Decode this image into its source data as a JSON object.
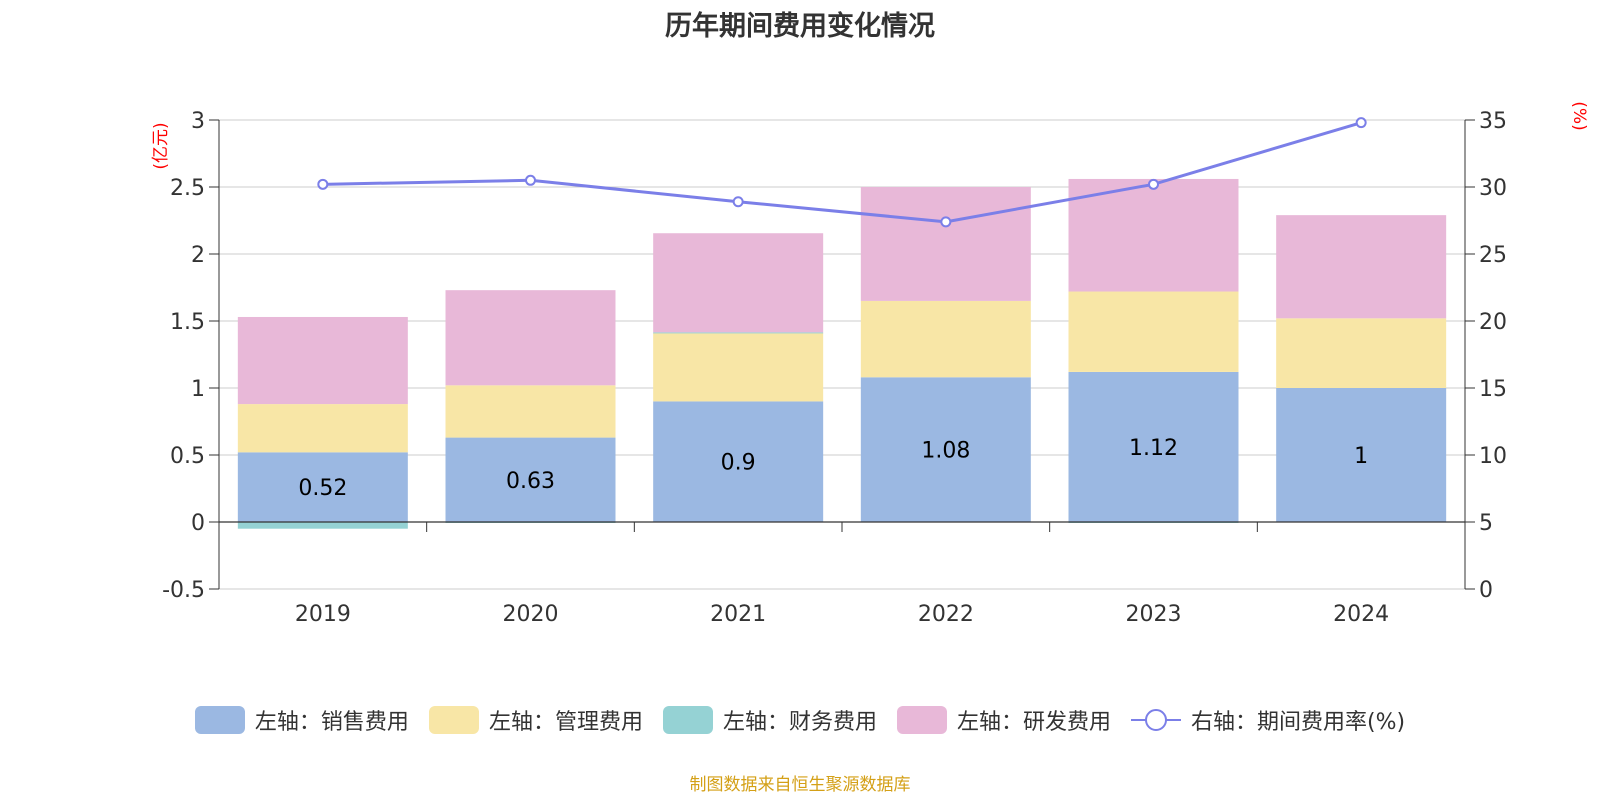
{
  "chart_data": {
    "type": "bar",
    "title": "历年期间费用变化情况",
    "categories": [
      "2019",
      "2020",
      "2021",
      "2022",
      "2023",
      "2024"
    ],
    "left_axis": {
      "unit_label": "(亿元)",
      "ylim": [
        -0.5,
        3
      ],
      "ticks": [
        "3",
        "2.5",
        "2",
        "1.5",
        "1",
        "0.5",
        "0",
        "-0.5"
      ]
    },
    "right_axis": {
      "unit_label": "(%)",
      "ylim": [
        0,
        35
      ],
      "ticks": [
        "35",
        "30",
        "25",
        "20",
        "15",
        "10",
        "5",
        "0"
      ]
    },
    "series": [
      {
        "name": "左轴：销售费用",
        "color": "#9bb8e2",
        "values": [
          0.52,
          0.63,
          0.9,
          1.08,
          1.12,
          1.0
        ],
        "data_labels": [
          "0.52",
          "0.63",
          "0.9",
          "1.08",
          "1.12",
          "1"
        ]
      },
      {
        "name": "左轴：管理费用",
        "color": "#f8e6a6",
        "values": [
          0.36,
          0.39,
          0.51,
          0.57,
          0.6,
          0.52
        ]
      },
      {
        "name": "左轴：财务费用",
        "color": "#95d2d4",
        "values": [
          -0.05,
          -0.005,
          0.005,
          0.0,
          -0.005,
          0.0
        ]
      },
      {
        "name": "左轴：研发费用",
        "color": "#e8b8d8",
        "values": [
          0.65,
          0.71,
          0.74,
          0.85,
          0.84,
          0.77
        ]
      }
    ],
    "line_series": {
      "name": "右轴：期间费用率(%)",
      "color": "#7b7fe8",
      "values": [
        30.2,
        30.5,
        28.9,
        27.4,
        30.2,
        34.8
      ]
    },
    "grid": true,
    "legend_position": "bottom"
  },
  "source_note": "制图数据来自恒生聚源数据库",
  "colors": {
    "axis_unit_label": "#ff0000",
    "source_note": "#d4a017",
    "grid": "#cccccc",
    "text": "#333333"
  }
}
